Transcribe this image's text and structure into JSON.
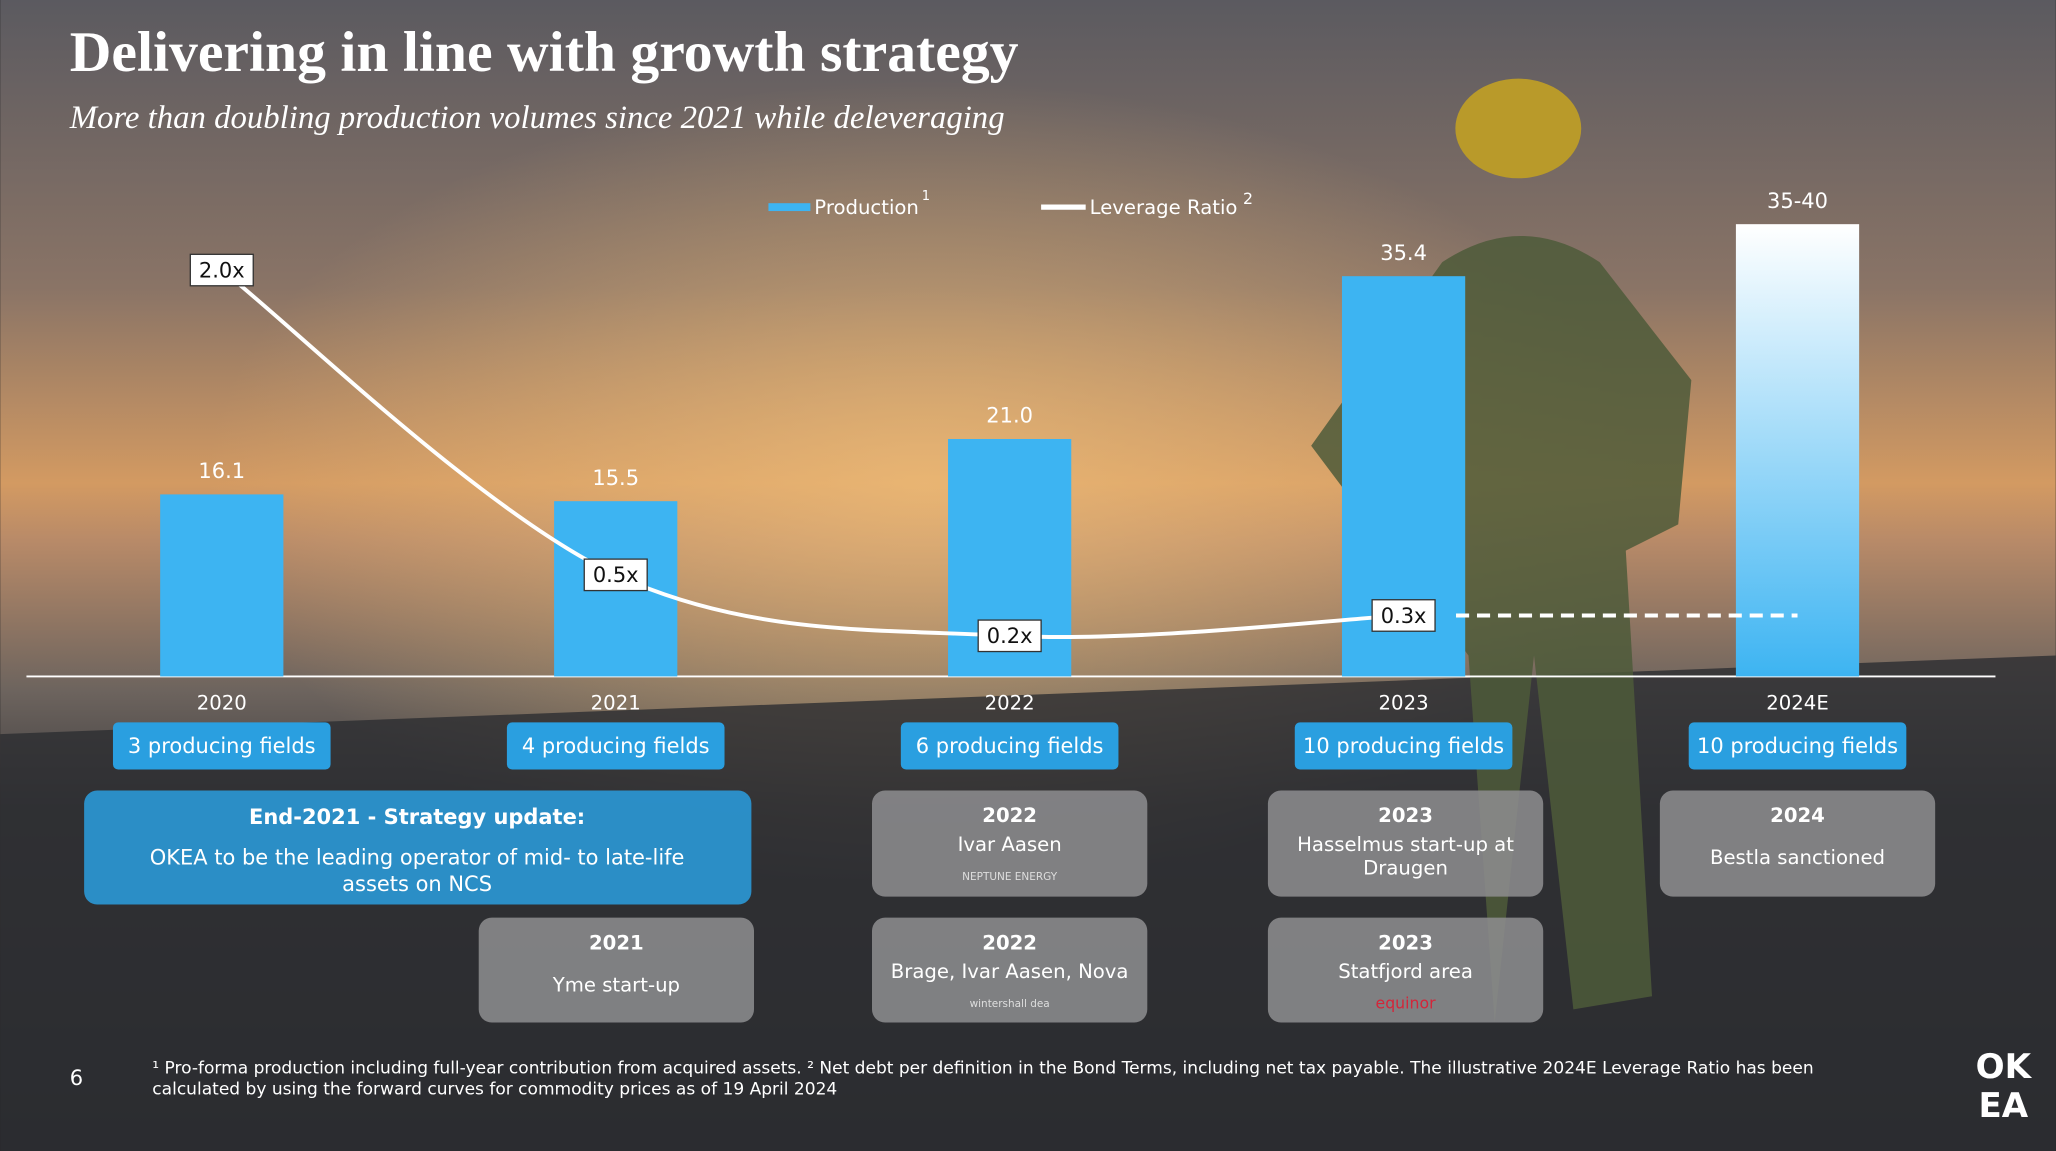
{
  "title": "Delivering in line with growth strategy",
  "subtitle": "More than doubling production volumes since 2021 while deleveraging",
  "chart_data": {
    "type": "bar",
    "categories": [
      "2020",
      "2021",
      "2022",
      "2023",
      "2024E"
    ],
    "series": [
      {
        "name": "Production",
        "note": "1",
        "color": "#3db4f2",
        "values": [
          16.1,
          15.5,
          21.0,
          35.4,
          40
        ],
        "value_labels": [
          "16.1",
          "15.5",
          "21.0",
          "35.4",
          "35-40"
        ],
        "projected": [
          false,
          false,
          false,
          false,
          true
        ]
      },
      {
        "name": "Leverage Ratio",
        "note": "2",
        "type": "line",
        "color": "#ffffff",
        "values": [
          2.0,
          0.5,
          0.2,
          0.3,
          0.3
        ],
        "value_labels": [
          "2.0x",
          "0.5x",
          "0.2x",
          "0.3x",
          null
        ],
        "projected": [
          false,
          false,
          false,
          false,
          true
        ]
      }
    ],
    "fields": [
      "3 producing fields",
      "4 producing fields",
      "6 producing fields",
      "10 producing fields",
      "10 producing fields"
    ]
  },
  "strategy": {
    "title": "End-2021 - Strategy update:",
    "lines": [
      "OKEA to be the leading operator of mid- to late-life",
      "assets on NCS"
    ]
  },
  "milestones": [
    {
      "year": "2021",
      "lines": [
        "Yme start-up"
      ]
    },
    {
      "year": "2022",
      "lines": [
        "Ivar Aasen"
      ],
      "logo": "NEPTUNE ENERGY"
    },
    {
      "year": "2022",
      "lines": [
        "Brage, Ivar Aasen, Nova"
      ],
      "logo": "wintershall dea"
    },
    {
      "year": "2023",
      "lines": [
        "Hasselmus start-up at",
        "Draugen"
      ]
    },
    {
      "year": "2023",
      "lines": [
        "Statfjord area"
      ],
      "logo": "equinor"
    },
    {
      "year": "2024",
      "lines": [
        "Bestla sanctioned"
      ]
    }
  ],
  "footnote": [
    "¹ Pro-forma production including full-year contribution from acquired assets. ² Net debt per definition in the Bond Terms, including net tax payable. The illustrative 2024E Leverage Ratio has been",
    "calculated by using the forward curves for commodity prices as of 19 April 2024"
  ],
  "page_number": "6",
  "logo": [
    "OK",
    "EA"
  ]
}
